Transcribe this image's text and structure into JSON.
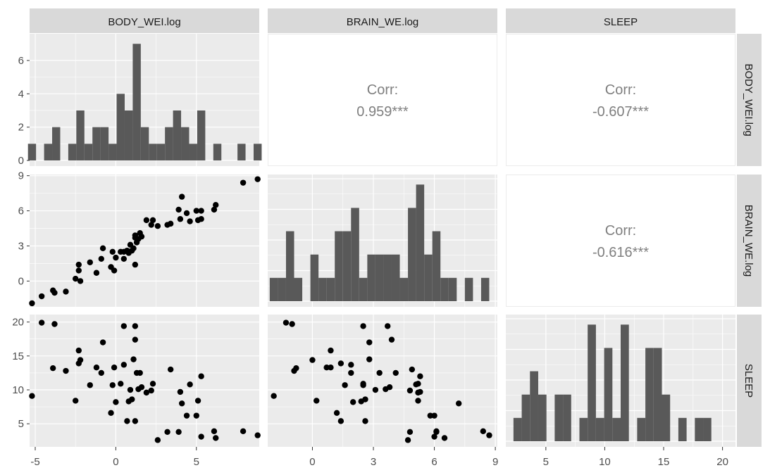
{
  "columns": [
    "BODY_WEI.log",
    "BRAIN_WE.log",
    "SLEEP"
  ],
  "rows": [
    "BODY_WEI.log",
    "BRAIN_WE.log",
    "SLEEP"
  ],
  "colors": {
    "panel_bg": "#ebebeb",
    "grid": "#ffffff",
    "strip_bg": "#d9d9d9",
    "bar": "#595959",
    "point": "#000000"
  },
  "chart_data": {
    "type": "scatter",
    "variables": [
      "BODY_WEI.log",
      "BRAIN_WE.log",
      "SLEEP"
    ],
    "axis_ranges": {
      "BODY_WEI.log": [
        -5.35,
        8.9
      ],
      "BRAIN_WE.log": [
        -2.2,
        9.1
      ],
      "SLEEP": [
        1.6,
        21.1
      ]
    },
    "axis_ticks": {
      "BODY_WEI.log": [
        "-5",
        "0",
        "5"
      ],
      "BRAIN_WE.log": [
        "0",
        "3",
        "6",
        "9"
      ],
      "SLEEP": [
        "5",
        "10",
        "15",
        "20"
      ]
    },
    "correlations": [
      {
        "row": "BODY_WEI.log",
        "col": "BRAIN_WE.log",
        "label": "Corr:",
        "value": "0.959***"
      },
      {
        "row": "BODY_WEI.log",
        "col": "SLEEP",
        "label": "Corr:",
        "value": "-0.607***"
      },
      {
        "row": "BRAIN_WE.log",
        "col": "SLEEP",
        "label": "Corr:",
        "value": "-0.616***"
      }
    ],
    "histograms": [
      {
        "variable": "BODY_WEI.log",
        "y_ticks": [
          "0",
          "2",
          "4",
          "6"
        ],
        "bins": [
          -5.2,
          -4.7,
          -4.2,
          -3.7,
          -3.2,
          -2.7,
          -2.2,
          -1.7,
          -1.2,
          -0.7,
          -0.2,
          0.3,
          0.8,
          1.3,
          1.8,
          2.3,
          2.8,
          3.3,
          3.8,
          4.3,
          4.8,
          5.3,
          5.8,
          6.3,
          6.8,
          7.3,
          7.8,
          8.3,
          8.8
        ],
        "counts": [
          1,
          0,
          1,
          2,
          0,
          1,
          3,
          1,
          2,
          2,
          1,
          4,
          3,
          7,
          2,
          1,
          1,
          2,
          3,
          2,
          1,
          3,
          0,
          1,
          0,
          0,
          1,
          0,
          1
        ]
      },
      {
        "variable": "BRAIN_WE.log",
        "bins": [
          -1.9,
          -1.5,
          -1.1,
          -0.7,
          -0.3,
          0.1,
          0.5,
          0.9,
          1.3,
          1.7,
          2.1,
          2.5,
          2.9,
          3.3,
          3.7,
          4.1,
          4.5,
          4.9,
          5.3,
          5.7,
          6.1,
          6.5,
          6.9,
          7.3,
          7.7,
          8.1,
          8.5
        ],
        "counts": [
          1,
          1,
          3,
          1,
          0,
          2,
          1,
          1,
          3,
          3,
          4,
          1,
          2,
          2,
          2,
          2,
          1,
          4,
          5,
          2,
          3,
          1,
          1,
          0,
          1,
          0,
          1
        ]
      },
      {
        "variable": "SLEEP",
        "bins": [
          2.6,
          3.3,
          4.0,
          4.7,
          5.4,
          6.1,
          6.8,
          7.5,
          8.2,
          8.9,
          9.6,
          10.3,
          11.0,
          11.7,
          12.4,
          13.1,
          13.8,
          14.5,
          15.2,
          15.9,
          16.6,
          17.3,
          18.0,
          18.7,
          19.4,
          20.1
        ],
        "counts": [
          1,
          2,
          3,
          2,
          0,
          2,
          2,
          0,
          1,
          5,
          1,
          4,
          1,
          5,
          0,
          1,
          4,
          4,
          2,
          0,
          1,
          0,
          1,
          1,
          0,
          0
        ]
      }
    ],
    "points": [
      {
        "BODY_WEI.log": -5.2,
        "BRAIN_WE.log": -1.9,
        "SLEEP": 9.1
      },
      {
        "BODY_WEI.log": -4.6,
        "BRAIN_WE.log": -1.3,
        "SLEEP": 19.9
      },
      {
        "BODY_WEI.log": -3.8,
        "BRAIN_WE.log": -1.0,
        "SLEEP": 19.7
      },
      {
        "BODY_WEI.log": -3.9,
        "BRAIN_WE.log": -0.8,
        "SLEEP": 13.2
      },
      {
        "BODY_WEI.log": -3.1,
        "BRAIN_WE.log": -0.9,
        "SLEEP": 12.8
      },
      {
        "BODY_WEI.log": -2.5,
        "BRAIN_WE.log": 0.2,
        "SLEEP": 8.4
      },
      {
        "BODY_WEI.log": -2.2,
        "BRAIN_WE.log": 0.0,
        "SLEEP": 14.4
      },
      {
        "BODY_WEI.log": -2.3,
        "BRAIN_WE.log": 0.9,
        "SLEEP": 15.8
      },
      {
        "BODY_WEI.log": -2.3,
        "BRAIN_WE.log": 1.4,
        "SLEEP": 13.9
      },
      {
        "BODY_WEI.log": -1.6,
        "BRAIN_WE.log": 1.6,
        "SLEEP": 10.7
      },
      {
        "BODY_WEI.log": -1.2,
        "BRAIN_WE.log": 0.7,
        "SLEEP": 13.3
      },
      {
        "BODY_WEI.log": -0.9,
        "BRAIN_WE.log": 1.9,
        "SLEEP": 12.5
      },
      {
        "BODY_WEI.log": -0.8,
        "BRAIN_WE.log": 2.8,
        "SLEEP": 17.0
      },
      {
        "BODY_WEI.log": -0.3,
        "BRAIN_WE.log": 1.2,
        "SLEEP": 6.6
      },
      {
        "BODY_WEI.log": -0.2,
        "BRAIN_WE.log": 2.5,
        "SLEEP": 10.7
      },
      {
        "BODY_WEI.log": -0.1,
        "BRAIN_WE.log": 0.9,
        "SLEEP": 13.3
      },
      {
        "BODY_WEI.log": 0.0,
        "BRAIN_WE.log": 2.0,
        "SLEEP": 8.2
      },
      {
        "BODY_WEI.log": 0.3,
        "BRAIN_WE.log": 2.5,
        "SLEEP": 10.9
      },
      {
        "BODY_WEI.log": 0.5,
        "BRAIN_WE.log": 1.9,
        "SLEEP": 13.7
      },
      {
        "BODY_WEI.log": 0.5,
        "BRAIN_WE.log": 2.5,
        "SLEEP": 19.4
      },
      {
        "BODY_WEI.log": 0.7,
        "BRAIN_WE.log": 2.6,
        "SLEEP": 5.4
      },
      {
        "BODY_WEI.log": 0.8,
        "BRAIN_WE.log": 2.4,
        "SLEEP": 8.3
      },
      {
        "BODY_WEI.log": 0.9,
        "BRAIN_WE.log": 3.1,
        "SLEEP": 10.0
      },
      {
        "BODY_WEI.log": 1.0,
        "BRAIN_WE.log": 2.6,
        "SLEEP": 8.6
      },
      {
        "BODY_WEI.log": 1.1,
        "BRAIN_WE.log": 2.8,
        "SLEEP": 14.5
      },
      {
        "BODY_WEI.log": 1.2,
        "BRAIN_WE.log": 3.7,
        "SLEEP": 19.4
      },
      {
        "BODY_WEI.log": 1.2,
        "BRAIN_WE.log": 3.9,
        "SLEEP": 17.4
      },
      {
        "BODY_WEI.log": 1.3,
        "BRAIN_WE.log": 3.3,
        "SLEEP": 12.5
      },
      {
        "BODY_WEI.log": 1.4,
        "BRAIN_WE.log": 3.6,
        "SLEEP": 10.1
      },
      {
        "BODY_WEI.log": 1.2,
        "BRAIN_WE.log": 1.4,
        "SLEEP": 5.4
      },
      {
        "BODY_WEI.log": 1.5,
        "BRAIN_WE.log": 4.1,
        "SLEEP": 12.5
      },
      {
        "BODY_WEI.log": 1.6,
        "BRAIN_WE.log": 3.8,
        "SLEEP": 10.4
      },
      {
        "BODY_WEI.log": 1.9,
        "BRAIN_WE.log": 5.2,
        "SLEEP": 9.6
      },
      {
        "BODY_WEI.log": 2.2,
        "BRAIN_WE.log": 4.8,
        "SLEEP": 9.9
      },
      {
        "BODY_WEI.log": 2.3,
        "BRAIN_WE.log": 5.2,
        "SLEEP": 10.9
      },
      {
        "BODY_WEI.log": 2.6,
        "BRAIN_WE.log": 4.7,
        "SLEEP": 2.6
      },
      {
        "BODY_WEI.log": 3.2,
        "BRAIN_WE.log": 4.8,
        "SLEEP": 3.8
      },
      {
        "BODY_WEI.log": 3.4,
        "BRAIN_WE.log": 4.9,
        "SLEEP": 13.0
      },
      {
        "BODY_WEI.log": 3.9,
        "BRAIN_WE.log": 6.1,
        "SLEEP": 3.8
      },
      {
        "BODY_WEI.log": 4.0,
        "BRAIN_WE.log": 5.3,
        "SLEEP": 9.7
      },
      {
        "BODY_WEI.log": 4.1,
        "BRAIN_WE.log": 7.2,
        "SLEEP": 8.0
      },
      {
        "BODY_WEI.log": 4.4,
        "BRAIN_WE.log": 5.8,
        "SLEEP": 6.2
      },
      {
        "BODY_WEI.log": 4.6,
        "BRAIN_WE.log": 5.1,
        "SLEEP": 10.8
      },
      {
        "BODY_WEI.log": 5.0,
        "BRAIN_WE.log": 6.0,
        "SLEEP": 6.2
      },
      {
        "BODY_WEI.log": 5.1,
        "BRAIN_WE.log": 5.2,
        "SLEEP": 8.4
      },
      {
        "BODY_WEI.log": 5.3,
        "BRAIN_WE.log": 5.3,
        "SLEEP": 12.0
      },
      {
        "BODY_WEI.log": 5.3,
        "BRAIN_WE.log": 6.0,
        "SLEEP": 3.1
      },
      {
        "BODY_WEI.log": 6.1,
        "BRAIN_WE.log": 6.1,
        "SLEEP": 3.9
      },
      {
        "BODY_WEI.log": 6.2,
        "BRAIN_WE.log": 6.5,
        "SLEEP": 2.9
      },
      {
        "BODY_WEI.log": 7.9,
        "BRAIN_WE.log": 8.4,
        "SLEEP": 3.9
      },
      {
        "BODY_WEI.log": 8.8,
        "BRAIN_WE.log": 8.7,
        "SLEEP": 3.3
      }
    ]
  }
}
